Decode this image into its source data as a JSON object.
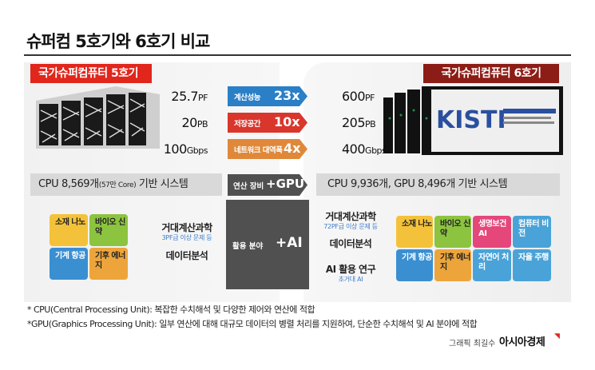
{
  "title": "슈퍼컴 5호기와 6호기 비교",
  "gen5": {
    "label": "국가슈퍼컴퓨터 5호기"
  },
  "gen6": {
    "label": "국가슈퍼컴퓨터 6호기"
  },
  "rows": [
    {
      "left_val": "25.7",
      "left_unit": "PF",
      "mid_label": "계산성능",
      "mid_val": "23x",
      "right_val": "600",
      "right_unit": "PF",
      "color": "#2a7fc6"
    },
    {
      "left_val": "20",
      "left_unit": "PB",
      "mid_label": "저장공간",
      "mid_val": "10x",
      "right_val": "205",
      "right_unit": "PB",
      "color": "#d9362c"
    },
    {
      "left_val": "100",
      "left_unit": "Gbps",
      "mid_label": "네트워크 대역폭",
      "mid_val": "4x",
      "right_val": "400",
      "right_unit": "Gbps",
      "color": "#e0883a"
    }
  ],
  "system": {
    "left_main": "CPU 8,569개",
    "left_small": "(57만 Core)",
    "left_tail": " 기반 시스템",
    "mid_label": "연산 장비",
    "mid_val": "+GPU",
    "right": "CPU 9,936개, GPU 8,496개 기반 시스템"
  },
  "usage": {
    "mid_label": "활용 분야",
    "mid_val": "+AI",
    "left_items": [
      {
        "title": "거대계산과학",
        "sub": "3PF급 이상 문제 등"
      },
      {
        "title": "데이터분석",
        "sub": ""
      }
    ],
    "right_items": [
      {
        "title": "거대계산과학",
        "sub": "72PF급 이상 문제 등"
      },
      {
        "title": "데이터분석",
        "sub": ""
      },
      {
        "title": "AI 활용 연구",
        "sub": "초거대 AI"
      }
    ],
    "left_puzzle": [
      "소재 나노",
      "바이오 신약",
      "기계 항공",
      "기후 에너지"
    ],
    "right_puzzle": [
      "소재 나노",
      "바이오 신약",
      "생명보건 AI",
      "컴퓨터 비전",
      "기계 항공",
      "기후 에너지",
      "자연어 처리",
      "자율 주행"
    ]
  },
  "server6_brand": "KISTI",
  "notes": [
    "* CPU(Central Processing Unit): 복잡한 수치해석 및 다양한 제어와 연산에 적합",
    "*GPU(Graphics Processing Unit): 일부 연산에 대해 대규모 데이터의 병렬 처리를 지원하여, 단순한 수치해석 및 AI 분야에 적합"
  ],
  "credit": "그래픽 최길수",
  "brand": "아시아경제"
}
